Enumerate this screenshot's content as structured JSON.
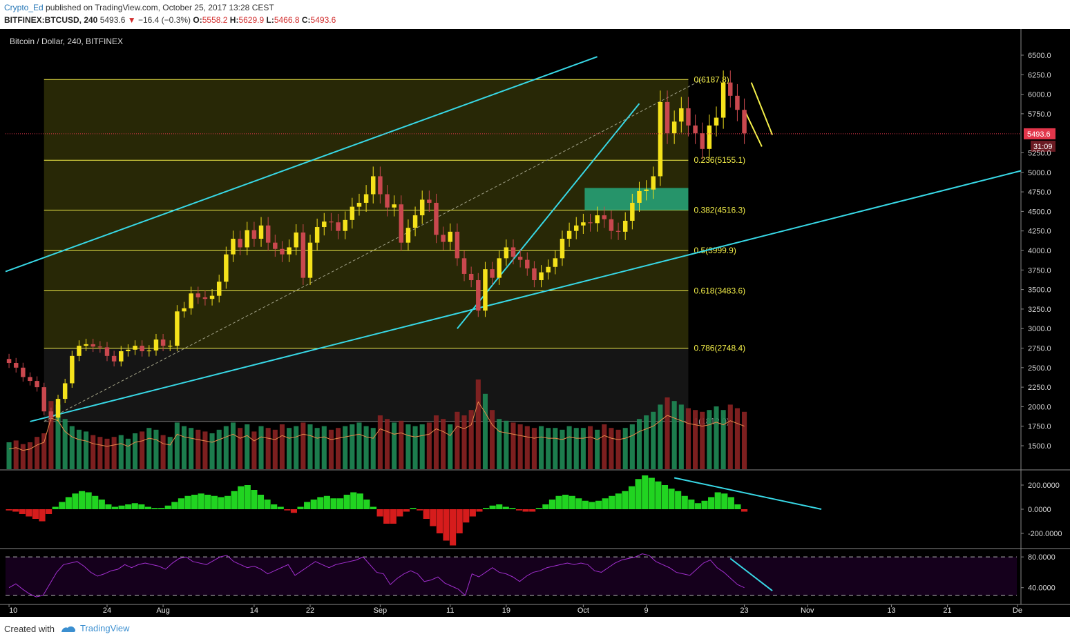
{
  "header": {
    "author": "Crypto_Ed",
    "published_text": "published on TradingView.com, October 25, 2017 13:28 CEST",
    "symbol": "BITFINEX:BTCUSD, 240",
    "last": "5493.6",
    "change": "−16.4 (−0.3%)",
    "o_label": "O:",
    "o_value": "5558.2",
    "h_label": "H:",
    "h_value": "5629.9",
    "l_label": "L:",
    "l_value": "5466.8",
    "c_label": "C:",
    "c_value": "5493.6"
  },
  "footer": {
    "created": "Created with",
    "brand": "TradingView"
  },
  "colors": {
    "background": "#000000",
    "candle": "#f5e21b",
    "wick_up": "#f5e21b",
    "candle_down": "#c9484e",
    "fib_line": "#f5f04a",
    "fib_fill": "#2a2a06",
    "channel": "#38d8e6",
    "target_box": "#26a77d",
    "hist_up": "#21d421",
    "hist_down": "#d61c1c",
    "rsi": "#a32fd1",
    "rsi_band": "#15001c",
    "price_tag": "#e3364b",
    "volume_up": "#1f8a55",
    "volume_down": "#8a2222",
    "volume_ma": "#e88a4c"
  },
  "chart_data": {
    "type": "candlestick",
    "title": "Bitcoin / Dollar, 240, BITFINEX",
    "price_axis": {
      "ticks": [
        6500,
        6250,
        6000,
        5750,
        5500,
        5250,
        5000,
        4750,
        4500,
        4250,
        4000,
        3750,
        3500,
        3250,
        3000,
        2750,
        2500,
        2250,
        2000,
        1750,
        1500
      ],
      "tick_labels": [
        "6500.0",
        "6250.0",
        "6000.0",
        "5750.0",
        "5500.0",
        "5250.0",
        "5000.0",
        "4750.0",
        "4500.0",
        "4250.0",
        "4000.0",
        "3750.0",
        "3500.0",
        "3250.0",
        "3000.0",
        "2750.0",
        "2500.0",
        "2250.0",
        "2000.0",
        "1750.0",
        "1500.0"
      ],
      "ylim": [
        1200,
        6800
      ]
    },
    "time_axis": {
      "labels": [
        "10",
        "24",
        "Aug",
        "14",
        "22",
        "Sep",
        "11",
        "19",
        "Oct",
        "9",
        "23",
        "Nov",
        "13",
        "21",
        "De"
      ],
      "label_days": [
        0,
        14,
        22,
        35,
        43,
        53,
        63,
        71,
        82,
        91,
        105,
        114,
        126,
        134,
        144
      ],
      "xlim_days": [
        -0.5,
        144.5
      ],
      "start": "2017-07-10"
    },
    "current_price": {
      "value": 5493.6,
      "label": "5493.6",
      "countdown": "31:09"
    },
    "price_series_daily": [
      2560,
      2500,
      2380,
      2330,
      2250,
      1940,
      1860,
      2100,
      2300,
      2650,
      2780,
      2800,
      2770,
      2760,
      2650,
      2580,
      2710,
      2730,
      2780,
      2710,
      2720,
      2860,
      2780,
      2780,
      3220,
      3260,
      3450,
      3400,
      3380,
      3420,
      3600,
      3950,
      4150,
      4040,
      4260,
      4150,
      4320,
      4100,
      4020,
      3950,
      4040,
      4230,
      3650,
      4100,
      4300,
      4370,
      4360,
      4250,
      4390,
      4560,
      4610,
      4720,
      4950,
      4720,
      4550,
      4590,
      4100,
      4290,
      4450,
      4650,
      4610,
      4200,
      4110,
      4240,
      3900,
      3700,
      3620,
      3230,
      3760,
      3650,
      3900,
      4040,
      3920,
      3880,
      3770,
      3620,
      3720,
      3790,
      3900,
      4150,
      4250,
      4320,
      4360,
      4350,
      4450,
      4400,
      4250,
      4240,
      4380,
      4610,
      4760,
      4780,
      4950,
      5900,
      5500,
      5650,
      5820,
      5600,
      5500,
      5300,
      5600,
      5700,
      6150,
      5980,
      5800,
      5500
    ],
    "volume_series_daily": [
      150,
      160,
      140,
      150,
      180,
      200,
      380,
      360,
      280,
      240,
      220,
      210,
      190,
      180,
      170,
      180,
      190,
      170,
      200,
      210,
      230,
      220,
      190,
      180,
      260,
      240,
      230,
      220,
      210,
      200,
      220,
      240,
      260,
      230,
      250,
      210,
      240,
      230,
      220,
      250,
      230,
      240,
      260,
      250,
      230,
      240,
      220,
      230,
      240,
      250,
      260,
      240,
      230,
      300,
      280,
      260,
      270,
      250,
      240,
      250,
      260,
      300,
      280,
      250,
      320,
      300,
      330,
      500,
      420,
      330,
      280,
      270,
      260,
      250,
      240,
      230,
      240,
      230,
      230,
      220,
      240,
      230,
      230,
      240,
      220,
      250,
      230,
      220,
      230,
      250,
      280,
      300,
      320,
      360,
      400,
      380,
      360,
      340,
      330,
      320,
      330,
      350,
      330,
      360,
      340,
      320,
      300
    ],
    "fibonacci": [
      {
        "level": "0",
        "price": 6187.8,
        "label": "0(6187.8)"
      },
      {
        "level": "0.236",
        "price": 5155.1,
        "label": "0.236(5155.1)"
      },
      {
        "level": "0.382",
        "price": 4516.3,
        "label": "0.382(4516.3)"
      },
      {
        "level": "0.5",
        "price": 3999.9,
        "label": "0.5(3999.9)"
      },
      {
        "level": "0.618",
        "price": 3483.6,
        "label": "0.618(3483.6)"
      },
      {
        "level": "0.786",
        "price": 2748.4,
        "label": "0.786(2748.4)"
      },
      {
        "level": "1",
        "price": 1812.0,
        "label": "1(1812.0)"
      }
    ],
    "fib_range_days": [
      5,
      97
    ],
    "trendlines": [
      {
        "name": "upper-channel",
        "from": [
          -0.5,
          3730
        ],
        "to": [
          84,
          6480
        ]
      },
      {
        "name": "lower-channel",
        "from": [
          3,
          1810
        ],
        "to": [
          144.5,
          5020
        ]
      },
      {
        "name": "steep-support",
        "from": [
          64,
          3000
        ],
        "to": [
          90,
          5880
        ]
      },
      {
        "name": "falling-resistance",
        "from": [
          106,
          6150
        ],
        "to": [
          109,
          5480
        ]
      },
      {
        "name": "falling-support",
        "from": [
          105,
          5800
        ],
        "to": [
          107.5,
          5330
        ]
      },
      {
        "name": "diagonal-dashed",
        "from": [
          5,
          1812
        ],
        "to": [
          99,
          6187.8
        ]
      }
    ],
    "target_box": {
      "days": [
        82.2,
        97
      ],
      "prices": [
        4516.3,
        4800
      ]
    },
    "macd": {
      "ticks": [
        200,
        0,
        -200
      ],
      "tick_labels": [
        "200.0000",
        "0.0000",
        "-200.0000"
      ],
      "ylim": [
        -320,
        320
      ],
      "histogram_daily": [
        -10,
        -20,
        -40,
        -60,
        -80,
        -100,
        -40,
        20,
        60,
        100,
        130,
        150,
        140,
        110,
        80,
        40,
        20,
        30,
        40,
        50,
        40,
        20,
        10,
        10,
        30,
        60,
        90,
        110,
        120,
        130,
        120,
        110,
        100,
        110,
        150,
        190,
        200,
        160,
        120,
        80,
        40,
        20,
        -10,
        -30,
        20,
        60,
        80,
        100,
        110,
        90,
        90,
        120,
        140,
        130,
        80,
        20,
        -60,
        -120,
        -120,
        -60,
        -20,
        10,
        -10,
        -80,
        -140,
        -200,
        -260,
        -300,
        -200,
        -110,
        -60,
        -20,
        10,
        30,
        40,
        20,
        10,
        -10,
        -20,
        -20,
        10,
        40,
        80,
        110,
        120,
        110,
        90,
        70,
        60,
        70,
        90,
        110,
        130,
        150,
        190,
        250,
        280,
        260,
        230,
        200,
        170,
        150,
        110,
        80,
        50,
        70,
        100,
        140,
        130,
        100,
        40,
        -20
      ],
      "divergence": {
        "from": [
          95,
          260
        ],
        "to": [
          116,
          0
        ]
      }
    },
    "rsi": {
      "ticks": [
        80,
        40
      ],
      "tick_labels": [
        "80.0000",
        "40.0000"
      ],
      "ylim": [
        20,
        90
      ],
      "band": [
        30,
        80
      ],
      "values_daily": [
        40,
        45,
        38,
        32,
        28,
        30,
        45,
        60,
        70,
        72,
        74,
        68,
        60,
        55,
        58,
        62,
        64,
        70,
        66,
        70,
        72,
        70,
        68,
        64,
        72,
        78,
        80,
        74,
        72,
        70,
        75,
        80,
        82,
        74,
        70,
        66,
        68,
        64,
        58,
        62,
        66,
        70,
        56,
        62,
        68,
        74,
        70,
        66,
        70,
        72,
        74,
        76,
        80,
        70,
        60,
        58,
        44,
        52,
        58,
        62,
        58,
        48,
        50,
        54,
        46,
        42,
        38,
        30,
        58,
        54,
        60,
        66,
        60,
        58,
        54,
        48,
        55,
        60,
        62,
        66,
        68,
        70,
        72,
        70,
        72,
        70,
        62,
        60,
        66,
        72,
        76,
        78,
        80,
        84,
        82,
        74,
        70,
        66,
        60,
        58,
        56,
        64,
        72,
        76,
        66,
        60,
        52,
        44,
        40
      ],
      "divergence": {
        "from": [
          103,
          78
        ],
        "to": [
          109,
          36
        ]
      }
    }
  }
}
